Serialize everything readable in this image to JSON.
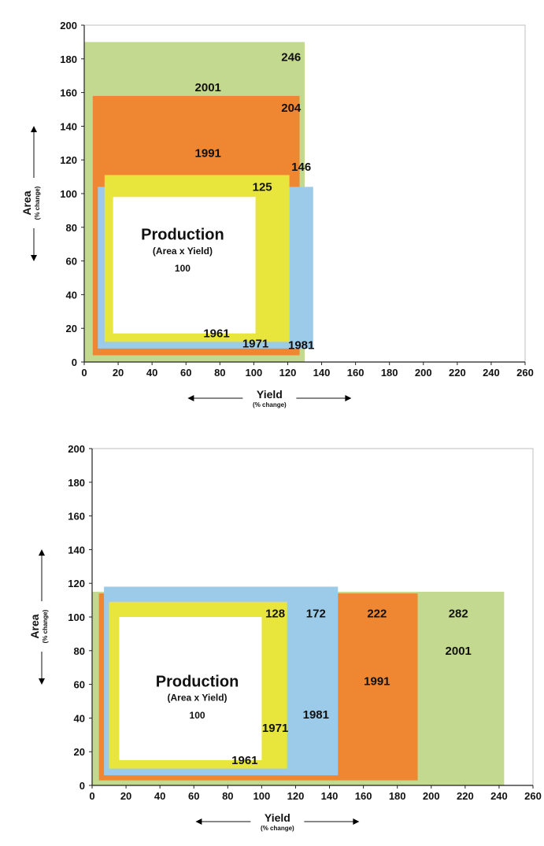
{
  "colors": {
    "c1961": "#ffffff",
    "c1971": "#e8e63c",
    "c1981": "#9ccbe9",
    "c1991": "#ef8632",
    "c2001": "#c3d98f",
    "grid": "#bfbfbf"
  },
  "chart_data": [
    {
      "type": "area-yield-rectangles",
      "xlabel": "Yield",
      "xlabel_sub": "(% change)",
      "ylabel": "Area",
      "ylabel_sub": "(% change)",
      "xlim": [
        0,
        260
      ],
      "ylim": [
        0,
        200
      ],
      "x_ticks": [
        "0",
        "20",
        "40",
        "60",
        "80",
        "100",
        "120",
        "140",
        "160",
        "180",
        "200",
        "220",
        "240",
        "260"
      ],
      "y_ticks": [
        "0",
        "20",
        "40",
        "60",
        "80",
        "100",
        "120",
        "140",
        "160",
        "180",
        "200"
      ],
      "center_title": "Production",
      "center_subtitle": "(Area x Yield)",
      "center_value": "100",
      "rects": [
        {
          "year": "2001",
          "production": "246",
          "x0": 0,
          "x1": 130,
          "y0": 0,
          "y1": 190,
          "color_key": "c2001"
        },
        {
          "year": "1991",
          "production": "204",
          "x0": 5,
          "x1": 127,
          "y0": 4,
          "y1": 158,
          "color_key": "c1991"
        },
        {
          "year": "1981",
          "production": "146",
          "x0": 8,
          "x1": 135,
          "y0": 8,
          "y1": 104,
          "color_key": "c1981"
        },
        {
          "year": "1971",
          "production": "125",
          "x0": 12,
          "x1": 121,
          "y0": 12,
          "y1": 111,
          "color_key": "c1971"
        },
        {
          "year": "1961",
          "production": "100",
          "x0": 17,
          "x1": 101,
          "y0": 17,
          "y1": 98,
          "color_key": "c1961"
        }
      ],
      "label_positions": {
        "2001": {
          "year": [
            73,
            163
          ],
          "value": [
            122,
            181
          ]
        },
        "1991": {
          "year": [
            73,
            124
          ],
          "value": [
            122,
            151
          ]
        },
        "1981": {
          "year": [
            128,
            10
          ],
          "value": [
            128,
            116
          ]
        },
        "1971": {
          "year": [
            101,
            11
          ],
          "value": [
            105,
            104
          ]
        },
        "1961": {
          "year": [
            78,
            17
          ]
        }
      },
      "center_pos": {
        "title": [
          58,
          76
        ],
        "subtitle": [
          58,
          66
        ],
        "value": [
          58,
          56
        ]
      }
    },
    {
      "type": "area-yield-rectangles",
      "xlabel": "Yield",
      "xlabel_sub": "(% change)",
      "ylabel": "Area",
      "ylabel_sub": "(% change)",
      "xlim": [
        0,
        260
      ],
      "ylim": [
        0,
        200
      ],
      "x_ticks": [
        "0",
        "20",
        "40",
        "60",
        "80",
        "100",
        "120",
        "140",
        "160",
        "180",
        "200",
        "220",
        "240",
        "260"
      ],
      "y_ticks": [
        "0",
        "20",
        "40",
        "60",
        "80",
        "100",
        "120",
        "140",
        "160",
        "180",
        "200"
      ],
      "center_title": "Production",
      "center_subtitle": "(Area x Yield)",
      "center_value": "100",
      "rects": [
        {
          "year": "2001",
          "production": "282",
          "x0": 0,
          "x1": 243,
          "y0": 0,
          "y1": 115,
          "color_key": "c2001"
        },
        {
          "year": "1991",
          "production": "222",
          "x0": 4,
          "x1": 192,
          "y0": 3,
          "y1": 114,
          "color_key": "c1991"
        },
        {
          "year": "1981",
          "production": "172",
          "x0": 7,
          "x1": 145,
          "y0": 6,
          "y1": 118,
          "color_key": "c1981"
        },
        {
          "year": "1971",
          "production": "128",
          "x0": 10,
          "x1": 115,
          "y0": 10,
          "y1": 109,
          "color_key": "c1971"
        },
        {
          "year": "1961",
          "production": "100",
          "x0": 16,
          "x1": 100,
          "y0": 15,
          "y1": 100,
          "color_key": "c1961"
        }
      ],
      "label_positions": {
        "2001": {
          "year": [
            216,
            80
          ],
          "value": [
            216,
            102
          ]
        },
        "1991": {
          "year": [
            168,
            62
          ],
          "value": [
            168,
            102
          ]
        },
        "1981": {
          "year": [
            132,
            42
          ],
          "value": [
            132,
            102
          ]
        },
        "1971": {
          "year": [
            108,
            34
          ],
          "value": [
            108,
            102
          ]
        },
        "1961": {
          "year": [
            90,
            15
          ]
        }
      },
      "center_pos": {
        "title": [
          62,
          62
        ],
        "subtitle": [
          62,
          52
        ],
        "value": [
          62,
          42
        ]
      }
    }
  ]
}
